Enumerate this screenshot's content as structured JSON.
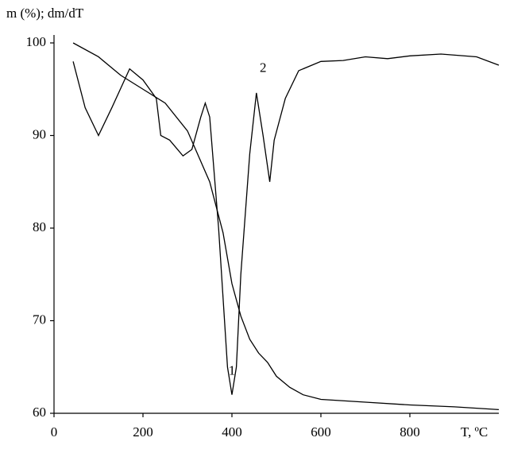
{
  "chart_data": {
    "type": "line",
    "y_label": "m (%); dm/dT",
    "x_label": "T, ºC",
    "xlim": [
      0,
      1000
    ],
    "ylim": [
      60,
      100
    ],
    "xticks": [
      0,
      200,
      400,
      600,
      800
    ],
    "yticks": [
      60,
      70,
      80,
      90,
      100
    ],
    "series": [
      {
        "name": "1",
        "color": "#000000",
        "x": [
          43,
          100,
          150,
          200,
          250,
          300,
          350,
          380,
          400,
          420,
          440,
          460,
          480,
          500,
          530,
          560,
          600,
          700,
          800,
          900,
          1000
        ],
        "values": [
          100,
          98.5,
          96.5,
          95,
          93.5,
          90.5,
          85,
          79.5,
          74,
          70.5,
          68,
          66.5,
          65.5,
          64,
          62.8,
          62,
          61.5,
          61.2,
          60.9,
          60.7,
          60.4
        ]
      },
      {
        "name": "2",
        "color": "#000000",
        "x": [
          43,
          70,
          100,
          130,
          170,
          200,
          230,
          240,
          260,
          290,
          310,
          330,
          340,
          350,
          370,
          390,
          400,
          410,
          420,
          440,
          455,
          470,
          485,
          495,
          520,
          550,
          600,
          650,
          700,
          750,
          800,
          870,
          950,
          1000
        ],
        "values": [
          98,
          93,
          90,
          93,
          97.2,
          96,
          94,
          90,
          89.5,
          87.8,
          88.5,
          92,
          93.5,
          92,
          80,
          65,
          62,
          65,
          75,
          88,
          94.6,
          90,
          85,
          89.5,
          94,
          97,
          98,
          98.1,
          98.5,
          98.3,
          98.6,
          98.8,
          98.5,
          97.6
        ]
      }
    ]
  }
}
